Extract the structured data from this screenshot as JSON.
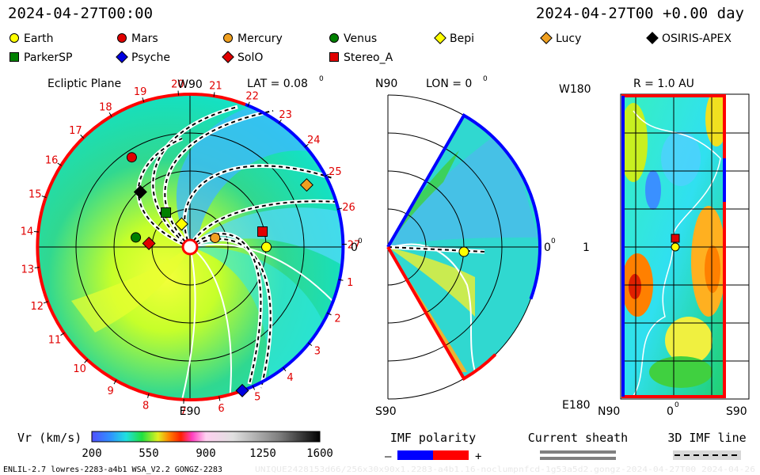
{
  "header": {
    "time_left": "2024-04-27T00:00",
    "time_right": "2024-04-27T00 +0.00 day"
  },
  "legend": [
    {
      "name": "Earth",
      "shape": "circle",
      "color": "#ffff00"
    },
    {
      "name": "Mars",
      "shape": "circle",
      "color": "#e00000"
    },
    {
      "name": "Mercury",
      "shape": "circle",
      "color": "#f0a020"
    },
    {
      "name": "Venus",
      "shape": "circle",
      "color": "#008000"
    },
    {
      "name": "Bepi",
      "shape": "diamond",
      "color": "#ffff00"
    },
    {
      "name": "Lucy",
      "shape": "diamond",
      "color": "#f0a020"
    },
    {
      "name": "OSIRIS-APEX",
      "shape": "diamond",
      "color": "#000000"
    },
    {
      "name": "ParkerSP",
      "shape": "square",
      "color": "#008000"
    },
    {
      "name": "Psyche",
      "shape": "diamond",
      "color": "#0000e0"
    },
    {
      "name": "SolO",
      "shape": "diamond",
      "color": "#e00000"
    },
    {
      "name": "Stereo_A",
      "shape": "square",
      "color": "#e00000"
    }
  ],
  "panels": {
    "ecliptic": {
      "title": "Ecliptic Plane",
      "lat": "LAT = 0.08",
      "lat_sup": "0",
      "top_label": "W90",
      "bottom_label": "E90",
      "right_label": "0",
      "right_sup": "0",
      "carrington_ticks": [
        "1",
        "2",
        "3",
        "4",
        "5",
        "6",
        "7",
        "8",
        "9",
        "10",
        "11",
        "12",
        "13",
        "14",
        "15",
        "16",
        "17",
        "18",
        "19",
        "20",
        "21",
        "22",
        "23",
        "24",
        "25",
        "26",
        "27"
      ]
    },
    "meridional": {
      "top_left": "N90",
      "lon": "LON = 0",
      "lon_sup": "0",
      "bottom_left": "S90",
      "right_label": "0",
      "right_sup": "0"
    },
    "map": {
      "title": "R = 1.0 AU",
      "top_left": "W180",
      "mid_left": "1",
      "bottom_left": "E180",
      "x_left": "N90",
      "x_mid": "0",
      "x_mid_sup": "0",
      "x_right": "S90"
    }
  },
  "colorbar": {
    "label": "Vr (km/s)",
    "ticks": [
      "200",
      "550",
      "900",
      "1250",
      "1600"
    ],
    "range": [
      200,
      1600
    ]
  },
  "bottom_legend": {
    "imf_title": "IMF polarity",
    "imf_minus": "–",
    "imf_plus": "+",
    "sheath_title": "Current sheath",
    "imf3d_title": "3D IMF line",
    "colors": {
      "negative": "#0000ff",
      "positive": "#ff0000",
      "sheath": "#808080"
    }
  },
  "footer": {
    "left": "ENLIL-2.7 lowres-2283-a4b1 WSA_V2.2 GONGZ-2283",
    "right": "UNIQUE2428153d66/256x30x90x1.2283-a4b1.16-noclumpnfcd-1g53a5d2.gongz-2024-04-27T00   2024-04-26"
  },
  "chart_data": [
    {
      "type": "heatmap",
      "title": "Ecliptic Plane",
      "quantity": "Vr (km/s)",
      "vrange": [
        200,
        1600
      ],
      "objects": [
        {
          "name": "Earth",
          "lon_deg": 0,
          "r_au": 1.0
        },
        {
          "name": "Mercury",
          "lon_deg": 20,
          "r_au": 0.35
        },
        {
          "name": "Stereo_A",
          "lon_deg": 12,
          "r_au": 0.97
        },
        {
          "name": "Venus",
          "lon_deg": 170,
          "r_au": 0.72
        },
        {
          "name": "SolO",
          "lon_deg": 175,
          "r_au": 0.54
        },
        {
          "name": "Bepi",
          "lon_deg": 110,
          "r_au": 0.32
        },
        {
          "name": "ParkerSP",
          "lon_deg": 125,
          "r_au": 0.55
        },
        {
          "name": "OSIRIS-APEX",
          "lon_deg": 132,
          "r_au": 0.97
        },
        {
          "name": "Mars",
          "lon_deg": 123,
          "r_au": 1.4
        },
        {
          "name": "Lucy",
          "lon_deg": 28,
          "r_au": 1.73
        },
        {
          "name": "Psyche",
          "lon_deg": 290,
          "r_au": 2.0
        }
      ]
    },
    {
      "type": "heatmap",
      "title": "LON = 0",
      "quantity": "Vr (km/s)",
      "objects": [
        {
          "name": "Earth",
          "lat_deg": 0,
          "r_au": 1.0
        }
      ]
    },
    {
      "type": "heatmap",
      "title": "R = 1.0 AU",
      "quantity": "Vr (km/s)",
      "objects": [
        {
          "name": "Earth"
        },
        {
          "name": "Stereo_A"
        }
      ]
    }
  ]
}
